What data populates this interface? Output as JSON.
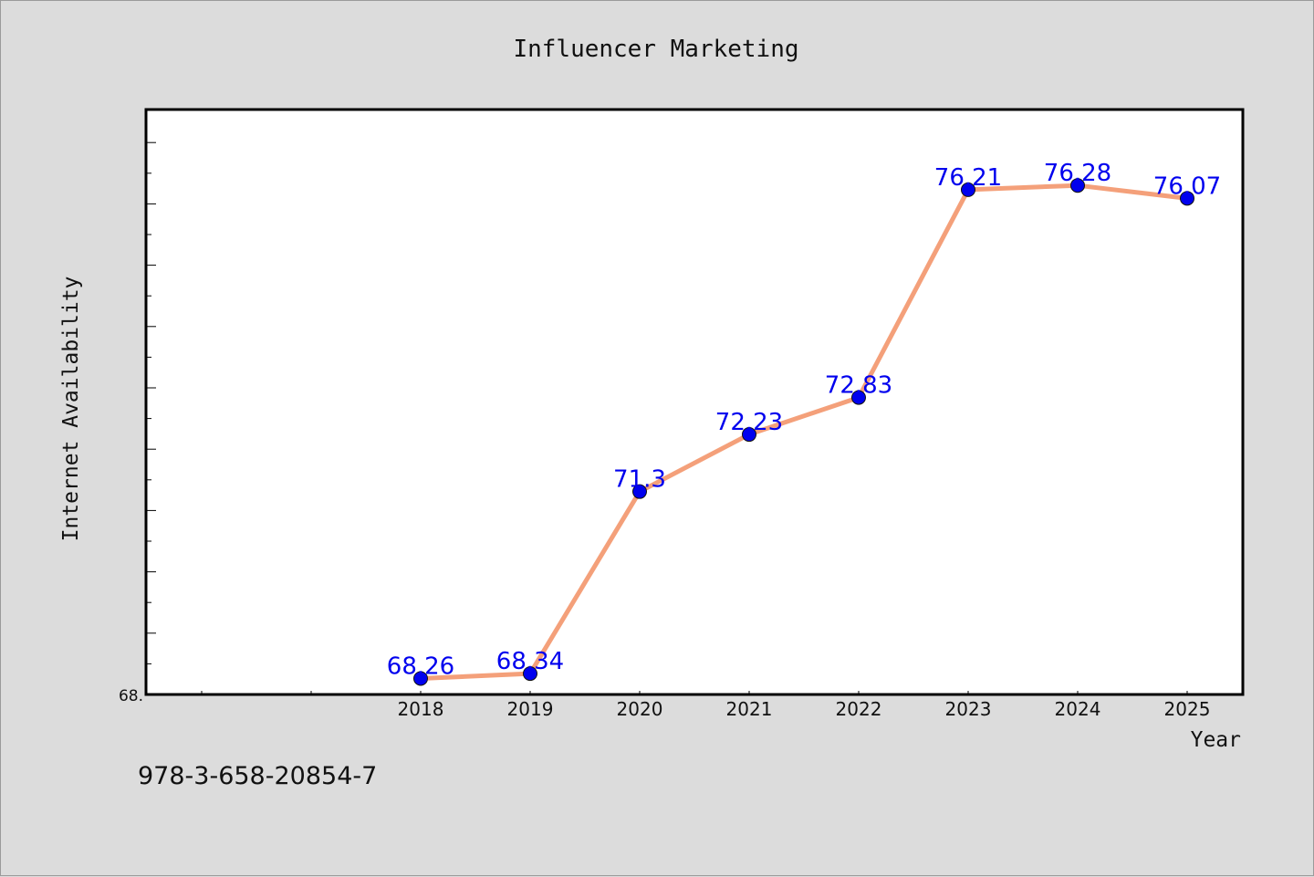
{
  "chart_data": {
    "type": "line",
    "title": "Influencer Marketing",
    "xlabel": "Year",
    "ylabel": "Internet Availability",
    "categories": [
      "2018",
      "2019",
      "2020",
      "2021",
      "2022",
      "2023",
      "2024",
      "2025"
    ],
    "series": [
      {
        "values": [
          68.26,
          68.34,
          71.3,
          72.23,
          72.83,
          76.21,
          76.28,
          76.07
        ],
        "line_color": "#f4a07a",
        "marker_color": "#0000ee"
      }
    ],
    "data_labels": [
      "68.26",
      "68.34",
      "71.3",
      "72.23",
      "72.83",
      "76.21",
      "76.28",
      "76.07"
    ],
    "y_tick_label": "68.",
    "ylim": [
      68.0,
      77.5
    ],
    "grid": false,
    "data_label_color": "#0000ee"
  },
  "footer": {
    "code": "978-3-658-20854-7"
  }
}
